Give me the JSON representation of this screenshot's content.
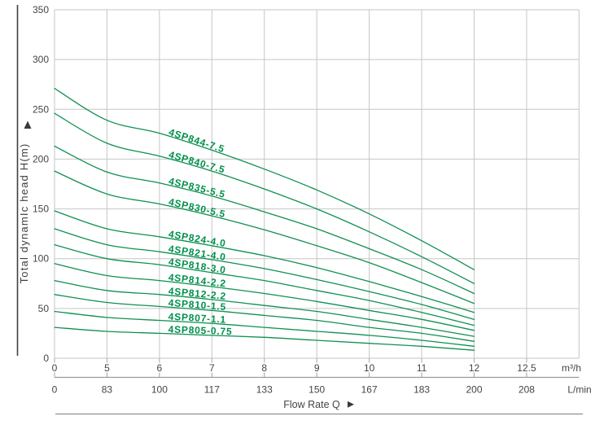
{
  "chart_data": {
    "type": "line",
    "title": "",
    "xlabel": "Flow Rate Q",
    "ylabel": "Total dynamIc head H(m)",
    "grid": true,
    "legend_position": "labels-on-curves",
    "x_axis": {
      "ticks_m3h": [
        "0",
        "5",
        "6",
        "7",
        "8",
        "9",
        "10",
        "11",
        "12",
        "12.5"
      ],
      "unit_m3h": "m³/h",
      "ticks_lmin": [
        "0",
        "83",
        "100",
        "117",
        "133",
        "150",
        "167",
        "183",
        "200",
        "208"
      ],
      "unit_lmin": "L/min"
    },
    "y_axis": {
      "min": 0,
      "max": 350,
      "step": 50,
      "ticks": [
        "350",
        "300",
        "250",
        "200",
        "150",
        "100",
        "50",
        "0"
      ]
    },
    "q_m3h": [
      0,
      5,
      6,
      7,
      8,
      9,
      10,
      11,
      12
    ],
    "series": [
      {
        "name": "4SP844-7.5",
        "head_m": [
          271,
          239,
          226,
          209,
          190,
          169,
          145,
          118,
          89
        ]
      },
      {
        "name": "4SP840-7.5",
        "head_m": [
          246,
          216,
          203,
          188,
          170,
          150,
          127,
          102,
          75
        ]
      },
      {
        "name": "4SP835-5.5",
        "head_m": [
          213,
          187,
          176,
          163,
          147,
          130,
          110,
          89,
          65
        ]
      },
      {
        "name": "4SP830-5.5",
        "head_m": [
          188,
          165,
          155,
          143,
          129,
          113,
          96,
          76,
          55
        ]
      },
      {
        "name": "4SP824-4.0",
        "head_m": [
          148,
          130,
          122,
          113,
          103,
          91,
          77,
          62,
          46
        ]
      },
      {
        "name": "4SP821-4.0",
        "head_m": [
          130,
          114,
          107,
          99,
          90,
          79,
          67,
          54,
          39
        ]
      },
      {
        "name": "4SP818-3.0",
        "head_m": [
          114,
          100,
          94,
          86,
          78,
          68,
          58,
          46,
          33
        ]
      },
      {
        "name": "4SP814-2.2",
        "head_m": [
          95,
          83,
          78,
          72,
          65,
          57,
          48,
          39,
          28
        ]
      },
      {
        "name": "4SP812-2.2",
        "head_m": [
          78,
          68,
          64,
          59,
          53,
          47,
          39,
          31,
          22
        ]
      },
      {
        "name": "4SP810-1.5",
        "head_m": [
          64,
          56,
          52,
          48,
          43,
          38,
          31,
          25,
          17
        ]
      },
      {
        "name": "4SP807-1.1",
        "head_m": [
          47,
          41,
          38,
          35,
          31,
          27,
          23,
          18,
          12
        ]
      },
      {
        "name": "4SP805-0.75",
        "head_m": [
          31,
          27,
          25,
          23,
          21,
          18,
          15,
          12,
          8
        ]
      }
    ],
    "colors": {
      "curve": "#0f9051",
      "curve_label": "#00904b",
      "grid": "#c6c6c6",
      "axis_text": "#454545",
      "axis_line": "#9c9c9c",
      "tick_mark": "#a6a6a6",
      "y_axis_bar": "#3f3f3f",
      "arrow": "#3a3a3a",
      "separator": "#8f8f8f"
    }
  }
}
